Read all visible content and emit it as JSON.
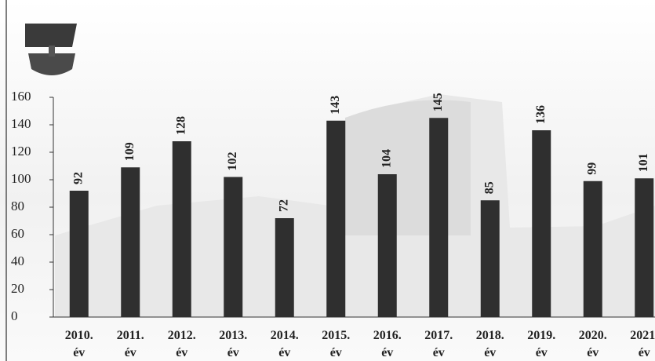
{
  "chart_data": {
    "type": "bar",
    "categories": [
      "2010. év",
      "2011. év",
      "2012. év",
      "2013. év",
      "2014. év",
      "2015. év",
      "2016. év",
      "2017. év",
      "2018. év",
      "2019. év",
      "2020. év",
      "2021. év"
    ],
    "values": [
      92,
      109,
      128,
      102,
      72,
      143,
      104,
      145,
      85,
      136,
      99,
      101
    ],
    "color": "#2f2f2f",
    "ylim": [
      0,
      160
    ],
    "yticks": [
      0,
      20,
      40,
      60,
      80,
      100,
      120,
      140,
      160
    ]
  }
}
